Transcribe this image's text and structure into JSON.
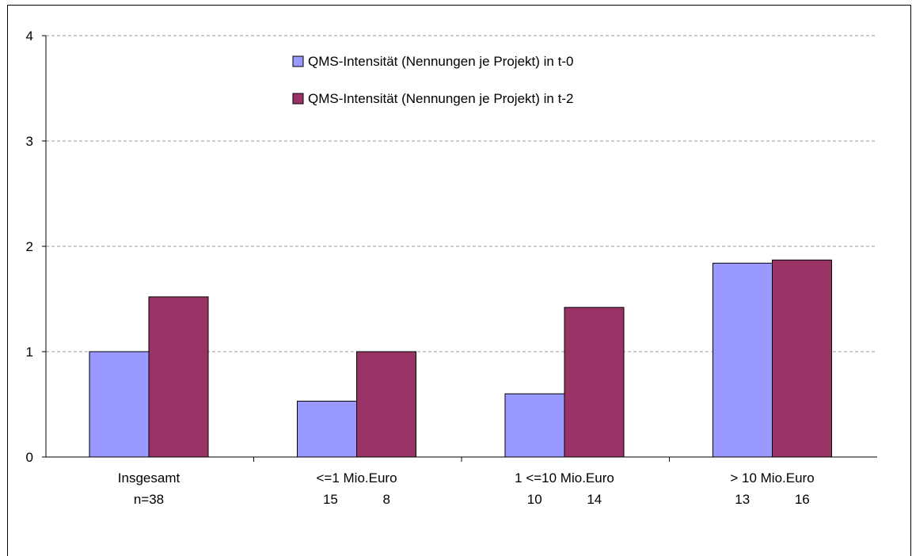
{
  "chart_data": {
    "type": "bar",
    "title": "",
    "xlabel": "",
    "ylabel": "",
    "ylim": [
      0,
      4
    ],
    "yticks": [
      "0",
      "1",
      "2",
      "3",
      "4"
    ],
    "grid": true,
    "legend_position": "top-center",
    "categories": [
      {
        "line1": "Insgesamt",
        "line2": "n=38"
      },
      {
        "line1": "<=1 Mio.Euro",
        "line2": "15            8"
      },
      {
        "line1": "1  <=10 Mio.Euro",
        "line2": "10            14"
      },
      {
        "line1": "> 10 Mio.Euro",
        "line2": "13            16"
      }
    ],
    "series": [
      {
        "name": "QMS-Intensität (Nennungen je Projekt) in t-0",
        "color": "#9999ff",
        "values": [
          1.0,
          0.53,
          0.6,
          1.84
        ]
      },
      {
        "name": "QMS-Intensität (Nennungen je Projekt) in t-2",
        "color": "#993366",
        "values": [
          1.52,
          1.0,
          1.42,
          1.87
        ]
      }
    ]
  }
}
